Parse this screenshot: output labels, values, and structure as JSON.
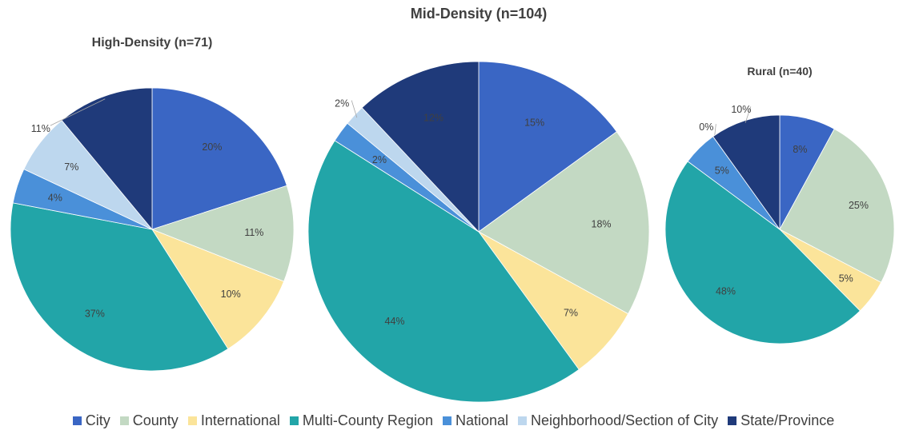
{
  "chart_data": [
    {
      "type": "pie",
      "title": "High-Density (n=71)",
      "categories": [
        "City",
        "County",
        "International",
        "Multi-County Region",
        "National",
        "Neighborhood/Section of City",
        "State/Province"
      ],
      "values": [
        20,
        11,
        10,
        37,
        4,
        7,
        11
      ],
      "labels": [
        "20%",
        "11%",
        "10%",
        "37%",
        "4%",
        "7%",
        "11%"
      ]
    },
    {
      "type": "pie",
      "title": "Mid-Density (n=104)",
      "categories": [
        "City",
        "County",
        "International",
        "Multi-County Region",
        "National",
        "Neighborhood/Section of City",
        "State/Province"
      ],
      "values": [
        15,
        18,
        7,
        44,
        2,
        2,
        12
      ],
      "labels": [
        "15%",
        "18%",
        "7%",
        "44%",
        "2%",
        "2%",
        "12%"
      ]
    },
    {
      "type": "pie",
      "title": "Rural (n=40)",
      "categories": [
        "City",
        "County",
        "International",
        "Multi-County Region",
        "National",
        "Neighborhood/Section of City",
        "State/Province"
      ],
      "values": [
        8,
        25,
        5,
        48,
        5,
        0,
        10
      ],
      "labels": [
        "8%",
        "25%",
        "5%",
        "48%",
        "5%",
        "0%",
        "10%"
      ]
    }
  ],
  "legend": {
    "placement": "bottom",
    "items": [
      {
        "label": "City",
        "color": "#3a66c4"
      },
      {
        "label": "County",
        "color": "#c3d9c3"
      },
      {
        "label": "International",
        "color": "#fbe49a"
      },
      {
        "label": "Multi-County Region",
        "color": "#22a5a8"
      },
      {
        "label": "National",
        "color": "#4a90d9"
      },
      {
        "label": "Neighborhood/Section of City",
        "color": "#bdd7ee"
      },
      {
        "label": "State/Province",
        "color": "#1f3a7a"
      }
    ]
  }
}
